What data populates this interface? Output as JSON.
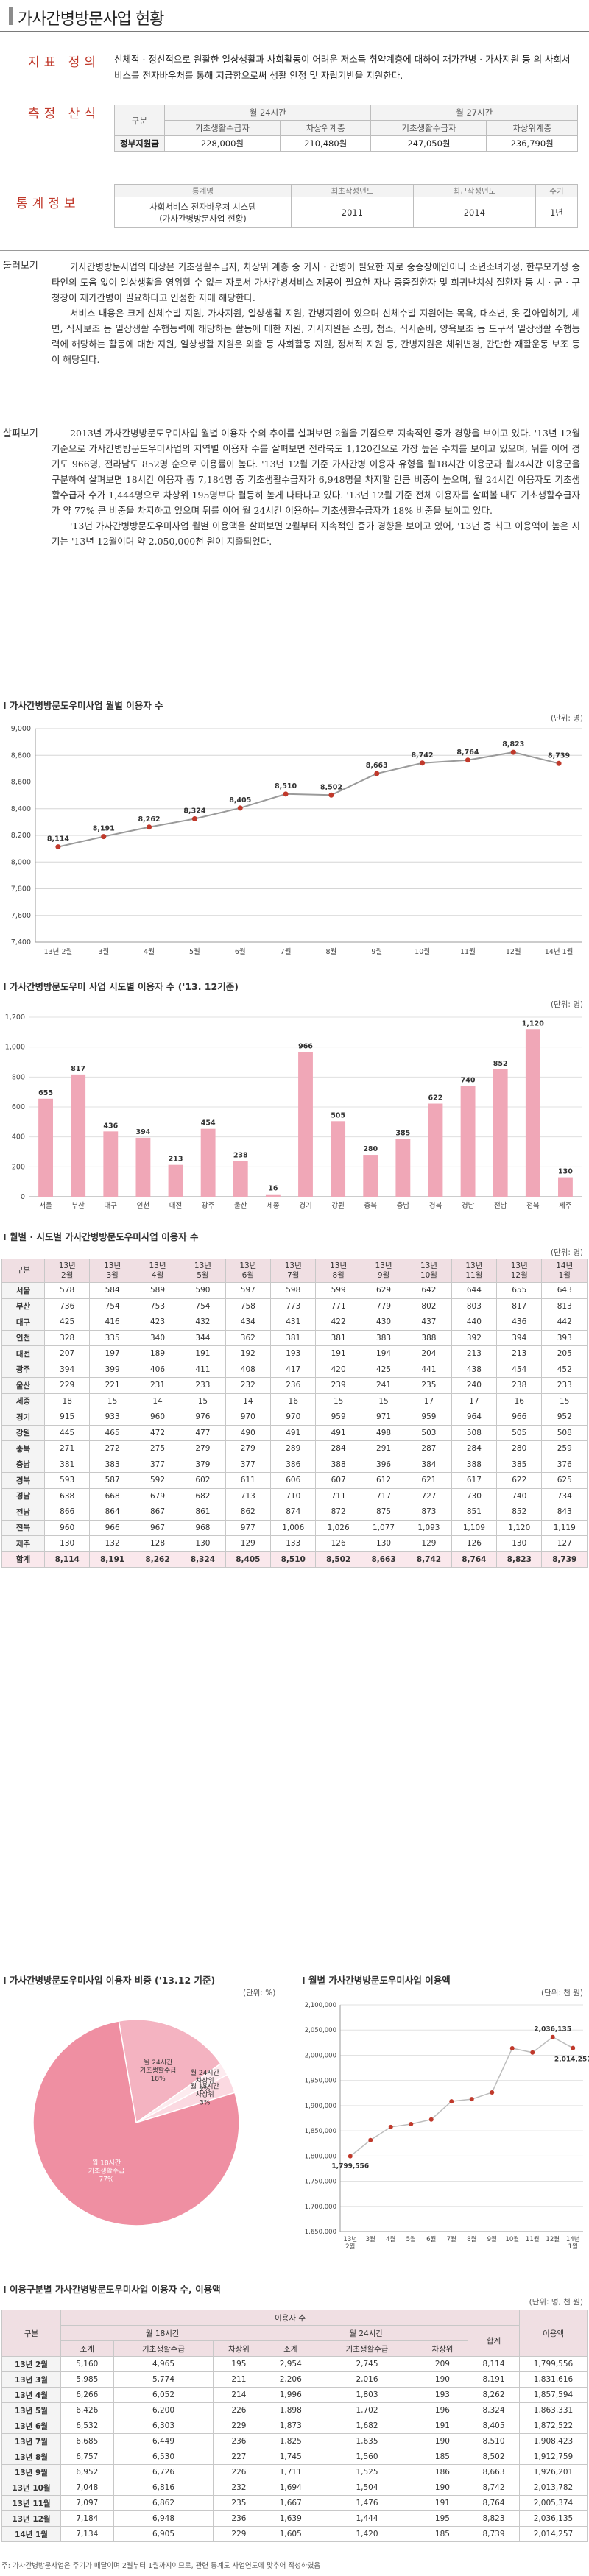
{
  "header": {
    "title": "가사간병방문사업 현황"
  },
  "definition": {
    "label": "지표 정의",
    "text": "신체적 · 정신적으로 원활한 일상생활과 사회활동이 어려운 저소득 취약계층에 대하여 재가간병 · 가사지원 등 의 사회서비스를 전자바우처를 통해 지급함으로써 생활 안정 및 자립기반을 지원한다."
  },
  "method": {
    "label": "측정 산식",
    "group_label": "구분",
    "plan_24": "월 24시간",
    "plan_27": "월 27시간",
    "sub": [
      "기초생활수급자",
      "차상위계층",
      "기초생활수급자",
      "차상위계층"
    ],
    "row_label": "정부지원금",
    "values": [
      "228,000원",
      "210,480원",
      "247,050원",
      "236,790원"
    ]
  },
  "stats_info": {
    "label": "통계정보",
    "headers": [
      "통계명",
      "최초작성년도",
      "최근작성년도",
      "주기"
    ],
    "name_line1": "사회서비스 전자바우처 시스템",
    "name_line2": "(가사간병방문사업 현황)",
    "first_year": "2011",
    "recent_year": "2014",
    "cycle": "1년"
  },
  "overview": {
    "label": "둘러보기",
    "p1": "가사간병방문사업의 대상은 기초생활수급자, 차상위 계층 중 가사 · 간병이 필요한 자로 중증장애인이나 소년소녀가정, 한부모가정 중 타인의 도움 없이 일상생활을 영위할 수 없는 자로서 가사간병서비스 제공이 필요한 자나 중증질환자 및 희귀난치성 질환자 등 시 · 군 · 구청장이 재가간병이 필요하다고 인정한 자에 해당한다.",
    "p2": "서비스 내용은 크게 신체수발 지원, 가사지원, 일상생활 지원, 간병지원이 있으며 신체수발 지원에는 목욕, 대소변, 옷 갈아입히기, 세면, 식사보조 등 일상생활 수행능력에 해당하는 활동에 대한 지원, 가사지원은 쇼핑, 청소, 식사준비, 양육보조 등 도구적 일상생활 수행능력에 해당하는 활동에 대한 지원, 일상생활 지원은 외출 등 사회활동 지원, 정서적 지원 등, 간병지원은 체위변경, 간단한 재활운동 보조 등이 해당된다."
  },
  "analysis": {
    "label": "살펴보기",
    "p1": "2013년 가사간병방문도우미사업 월별 이용자 수의 추이를 살펴보면 2월을 기점으로 지속적인 증가 경향을 보이고 있다. '13년 12월 기준으로 가사간병방문도우미사업의 지역별 이용자 수를 살펴보면 전라북도 1,120건으로 가장 높은 수치를 보이고 있으며, 뒤를 이어 경기도 966명, 전라남도 852명 순으로 이용률이 높다. '13년 12월 기준 가사간병 이용자 유형을 월18시간 이용군과 월24시간 이용군을 구분하여 살펴보면 18시간 이용자 총 7,184명 중 기초생활수급자가 6,948명을 차지할 만큼 비중이 높으며, 월 24시간 이용자도 기초생활수급자 수가 1,444명으로 차상위 195명보다 월등히 높게 나타나고 있다. '13년 12월 기준 전체 이용자를 살펴볼 때도 기초생활수급자가 약 77% 큰 비중을 차지하고 있으며 뒤를 이어 월 24시간 이용하는 기초생활수급자가 18% 비중을 보이고 있다.",
    "p2": "'13년 가사간병방문도우미사업 월별 이용액을 살펴보면 2월부터 지속적인 증가 경향을 보이고 있어, '13년 중 최고 이용액이 높은 시기는 '13년 12월이며 약 2,050,000천 원이 지출되었다."
  },
  "colors": {
    "accent": "#c0392b",
    "bar": "#f0a7b7",
    "line": "#9a9a9a",
    "pie_main": "#ef8fa2",
    "pie_mid": "#f4b3c1",
    "pie_small": "#fbd9e1",
    "pie_tiny": "#fdebef"
  },
  "chart_data": [
    {
      "type": "line",
      "title": "I 가사간병방문도우미사업 월별 이용자 수",
      "unit": "(단위: 명)",
      "categories": [
        "13년 2월",
        "3월",
        "4월",
        "5월",
        "6월",
        "7월",
        "8월",
        "9월",
        "10월",
        "11월",
        "12월",
        "14년 1월"
      ],
      "values": [
        8114,
        8191,
        8262,
        8324,
        8405,
        8510,
        8502,
        8663,
        8742,
        8764,
        8823,
        8739
      ],
      "value_labels": [
        "8,114",
        "8,191",
        "8,262",
        "8,324",
        "8,405",
        "8,510",
        "8,502",
        "8,663",
        "8,742",
        "8,764",
        "8,823",
        "8,739"
      ],
      "ylim": [
        7400,
        9000
      ],
      "yticks": [
        "7,400",
        "7,600",
        "7,800",
        "8,000",
        "8,200",
        "8,400",
        "8,600",
        "8,800",
        "9,000"
      ],
      "grid": true
    },
    {
      "type": "bar",
      "title": "I 가사간병방문도우미 사업 시도별 이용자 수 ('13. 12기준)",
      "unit": "(단위: 명)",
      "categories": [
        "서울",
        "부산",
        "대구",
        "인천",
        "대전",
        "광주",
        "울산",
        "세종",
        "경기",
        "강원",
        "충북",
        "충남",
        "경북",
        "경남",
        "전남",
        "전북",
        "제주"
      ],
      "values": [
        655,
        817,
        436,
        394,
        213,
        454,
        238,
        16,
        966,
        505,
        280,
        385,
        622,
        740,
        852,
        1120,
        130
      ],
      "value_labels": [
        "655",
        "817",
        "436",
        "394",
        "213",
        "454",
        "238",
        "16",
        "966",
        "505",
        "280",
        "385",
        "622",
        "740",
        "852",
        "1,120",
        "130"
      ],
      "ylim": [
        0,
        1200
      ],
      "yticks": [
        "0",
        "200",
        "400",
        "600",
        "800",
        "1,000",
        "1,200"
      ]
    },
    {
      "type": "table",
      "title": "I 월별 · 시도별 가사간병방문도우미사업 이용자 수",
      "unit": "(단위: 명)",
      "columns": [
        "구분",
        "13년 2월",
        "13년 3월",
        "13년 4월",
        "13년 5월",
        "13년 6월",
        "13년 7월",
        "13년 8월",
        "13년 9월",
        "13년 10월",
        "13년 11월",
        "13년 12월",
        "14년 1월"
      ],
      "rows": [
        [
          "서울",
          "578",
          "584",
          "589",
          "590",
          "597",
          "598",
          "599",
          "629",
          "642",
          "644",
          "655",
          "643"
        ],
        [
          "부산",
          "736",
          "754",
          "753",
          "754",
          "758",
          "773",
          "771",
          "779",
          "802",
          "803",
          "817",
          "813"
        ],
        [
          "대구",
          "425",
          "416",
          "423",
          "432",
          "434",
          "431",
          "422",
          "430",
          "437",
          "440",
          "436",
          "442"
        ],
        [
          "인천",
          "328",
          "335",
          "340",
          "344",
          "362",
          "381",
          "381",
          "383",
          "388",
          "392",
          "394",
          "393"
        ],
        [
          "대전",
          "207",
          "197",
          "189",
          "191",
          "192",
          "193",
          "191",
          "194",
          "204",
          "213",
          "213",
          "205"
        ],
        [
          "광주",
          "394",
          "399",
          "406",
          "411",
          "408",
          "417",
          "420",
          "425",
          "441",
          "438",
          "454",
          "452"
        ],
        [
          "울산",
          "229",
          "221",
          "231",
          "233",
          "232",
          "236",
          "239",
          "241",
          "235",
          "240",
          "238",
          "233"
        ],
        [
          "세종",
          "18",
          "15",
          "14",
          "15",
          "14",
          "16",
          "15",
          "15",
          "17",
          "17",
          "16",
          "15"
        ],
        [
          "경기",
          "915",
          "933",
          "960",
          "976",
          "970",
          "970",
          "959",
          "971",
          "959",
          "964",
          "966",
          "952"
        ],
        [
          "강원",
          "445",
          "465",
          "472",
          "477",
          "490",
          "491",
          "491",
          "498",
          "503",
          "508",
          "505",
          "508"
        ],
        [
          "충북",
          "271",
          "272",
          "275",
          "279",
          "279",
          "289",
          "284",
          "291",
          "287",
          "284",
          "280",
          "259"
        ],
        [
          "충남",
          "381",
          "383",
          "377",
          "379",
          "377",
          "386",
          "388",
          "396",
          "384",
          "388",
          "385",
          "376"
        ],
        [
          "경북",
          "593",
          "587",
          "592",
          "602",
          "611",
          "606",
          "607",
          "612",
          "621",
          "617",
          "622",
          "625"
        ],
        [
          "경남",
          "638",
          "668",
          "679",
          "682",
          "713",
          "710",
          "711",
          "717",
          "727",
          "730",
          "740",
          "734"
        ],
        [
          "전남",
          "866",
          "864",
          "867",
          "861",
          "862",
          "874",
          "872",
          "875",
          "873",
          "851",
          "852",
          "843"
        ],
        [
          "전북",
          "960",
          "966",
          "967",
          "968",
          "977",
          "1,006",
          "1,026",
          "1,077",
          "1,093",
          "1,109",
          "1,120",
          "1,119"
        ],
        [
          "제주",
          "130",
          "132",
          "128",
          "130",
          "129",
          "133",
          "126",
          "130",
          "129",
          "126",
          "130",
          "127"
        ]
      ],
      "total": [
        "합계",
        "8,114",
        "8,191",
        "8,262",
        "8,324",
        "8,405",
        "8,510",
        "8,502",
        "8,663",
        "8,742",
        "8,764",
        "8,823",
        "8,739"
      ]
    },
    {
      "type": "pie",
      "title": "I 가사간병방문도우미사업 이용자 비중 ('13.12 기준)",
      "unit": "(단위: %)",
      "slices": [
        {
          "name": "월 18시간 기초생활수급",
          "value": 77
        },
        {
          "name": "월 24시간 기초생활수급",
          "value": 18
        },
        {
          "name": "월 18시간 차상위",
          "value": 3
        },
        {
          "name": "월 24시간 차상위",
          "value": 2
        }
      ],
      "labels": [
        "월 18시간\n기초생활수급\n77%",
        "월 24시간\n기초생활수급\n18%",
        "월 18시간\n차상위\n3%",
        "월 24시간\n차상위\n2%"
      ]
    },
    {
      "type": "line",
      "title": "I 월별 가사간병방문도우미사업 이용액",
      "unit": "(단위: 천 원)",
      "categories": [
        "13년 2월",
        "3월",
        "4월",
        "5월",
        "6월",
        "7월",
        "8월",
        "9월",
        "10월",
        "11월",
        "12월",
        "14년 1월"
      ],
      "tick_labels": [
        "13년\n2월",
        "3월",
        "4월",
        "5월",
        "6월",
        "7월",
        "8월",
        "9월",
        "10월",
        "11월",
        "12월",
        "14년\n1월"
      ],
      "values": [
        1799556,
        1831616,
        1857594,
        1863331,
        1872522,
        1908423,
        1912759,
        1926201,
        2013782,
        2005374,
        2036135,
        2014257
      ],
      "point_labels": {
        "0": "1,799,556",
        "10": "2,036,135",
        "11": "2,014,257"
      },
      "ylim": [
        1650000,
        2100000
      ],
      "yticks": [
        "1,650,000",
        "1,700,000",
        "1,750,000",
        "1,800,000",
        "1,850,000",
        "1,900,000",
        "1,950,000",
        "2,000,000",
        "2,050,000",
        "2,100,000"
      ],
      "grid": true
    },
    {
      "type": "table",
      "title": "I 이용구분별 가사간병방문도우미사업 이용자 수, 이용액",
      "unit": "(단위: 명, 천 원)",
      "header": {
        "col_group": "구분",
        "users": "이용자 수",
        "h18": "월 18시간",
        "h24": "월 24시간",
        "sum": "합계",
        "amount": "이용액",
        "sub": [
          "소계",
          "기초생활수급",
          "차상위",
          "소계",
          "기초생활수급",
          "차상위"
        ]
      },
      "rows": [
        [
          "13년 2월",
          "5,160",
          "4,965",
          "195",
          "2,954",
          "2,745",
          "209",
          "8,114",
          "1,799,556"
        ],
        [
          "13년 3월",
          "5,985",
          "5,774",
          "211",
          "2,206",
          "2,016",
          "190",
          "8,191",
          "1,831,616"
        ],
        [
          "13년 4월",
          "6,266",
          "6,052",
          "214",
          "1,996",
          "1,803",
          "193",
          "8,262",
          "1,857,594"
        ],
        [
          "13년 5월",
          "6,426",
          "6,200",
          "226",
          "1,898",
          "1,702",
          "196",
          "8,324",
          "1,863,331"
        ],
        [
          "13년 6월",
          "6,532",
          "6,303",
          "229",
          "1,873",
          "1,682",
          "191",
          "8,405",
          "1,872,522"
        ],
        [
          "13년 7월",
          "6,685",
          "6,449",
          "236",
          "1,825",
          "1,635",
          "190",
          "8,510",
          "1,908,423"
        ],
        [
          "13년 8월",
          "6,757",
          "6,530",
          "227",
          "1,745",
          "1,560",
          "185",
          "8,502",
          "1,912,759"
        ],
        [
          "13년 9월",
          "6,952",
          "6,726",
          "226",
          "1,711",
          "1,525",
          "186",
          "8,663",
          "1,926,201"
        ],
        [
          "13년 10월",
          "7,048",
          "6,816",
          "232",
          "1,694",
          "1,504",
          "190",
          "8,742",
          "2,013,782"
        ],
        [
          "13년 11월",
          "7,097",
          "6,862",
          "235",
          "1,667",
          "1,476",
          "191",
          "8,764",
          "2,005,374"
        ],
        [
          "13년 12월",
          "7,184",
          "6,948",
          "236",
          "1,639",
          "1,444",
          "195",
          "8,823",
          "2,036,135"
        ],
        [
          "14년 1월",
          "7,134",
          "6,905",
          "229",
          "1,605",
          "1,420",
          "185",
          "8,739",
          "2,014,257"
        ]
      ]
    }
  ],
  "footnote": "주: 가사간병방문사업은 주기가 매달이며 2월부터 1월까지이므로, 관련 통계도 사업연도에 맞추어 작성하였음"
}
